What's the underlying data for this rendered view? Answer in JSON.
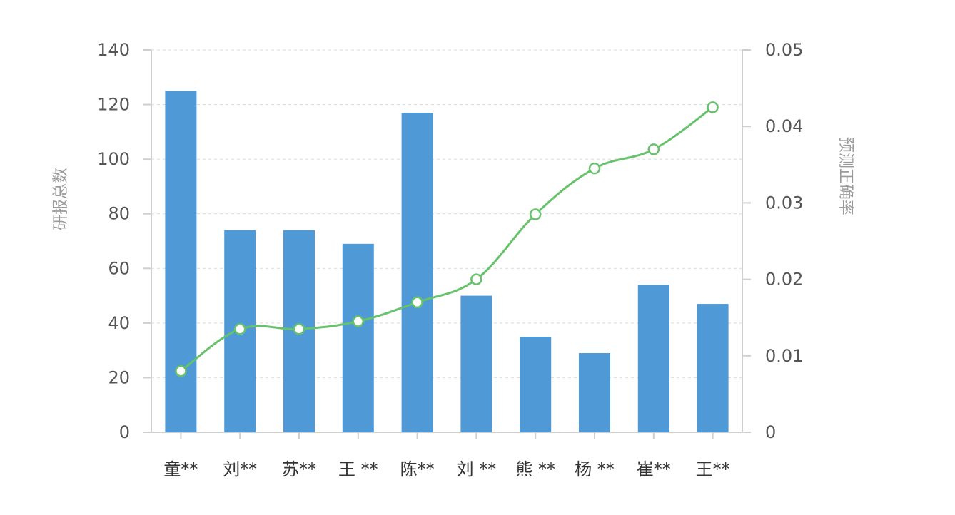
{
  "chart_data": {
    "type": "bar",
    "categories": [
      "童**",
      "刘**",
      "苏**",
      "王 **",
      "陈**",
      "刘 **",
      "熊 **",
      "杨 **",
      "崔**",
      "王**"
    ],
    "series": [
      {
        "type": "bar",
        "axis": "left",
        "values": [
          125,
          74,
          74,
          69,
          117,
          50,
          35,
          29,
          54,
          47
        ]
      },
      {
        "type": "line",
        "axis": "right",
        "values": [
          0.008,
          0.0135,
          0.0135,
          0.0145,
          0.017,
          0.02,
          0.0285,
          0.0345,
          0.037,
          0.0425
        ]
      }
    ],
    "ylabel": "研报总数",
    "y2label": "预测正确率",
    "ylim": [
      0,
      140
    ],
    "y2lim": [
      0,
      0.05
    ],
    "yticks": [
      "0",
      "20",
      "40",
      "60",
      "80",
      "100",
      "120",
      "140"
    ],
    "y2ticks": [
      "0",
      "0.01",
      "0.02",
      "0.03",
      "0.04",
      "0.05"
    ],
    "grid": true,
    "colors": {
      "bar": "#4f9ad6",
      "line": "#66c26b",
      "marker_fill": "#ffffff"
    }
  }
}
